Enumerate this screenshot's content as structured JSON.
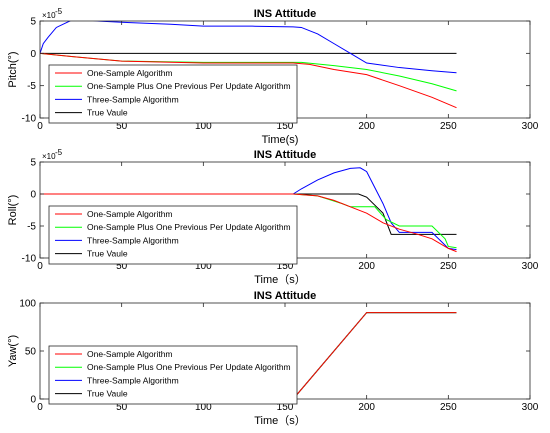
{
  "chart_data": [
    {
      "type": "line",
      "title": "INS Attitude",
      "xlabel": "Time(s)",
      "ylabel": "Pitch(°)",
      "xlim": [
        0,
        300
      ],
      "ylim": [
        -10,
        5
      ],
      "y_exponent_label": "×10",
      "y_exponent": "-5",
      "xticks": [
        0,
        50,
        100,
        150,
        200,
        250,
        300
      ],
      "yticks": [
        5,
        0,
        -5,
        -10
      ],
      "legend_position": "lower-left",
      "series": [
        {
          "name": "One-Sample Algorithm",
          "color": "#ff0000",
          "points": [
            [
              0,
              0
            ],
            [
              20,
              -0.5
            ],
            [
              50,
              -1.2
            ],
            [
              100,
              -1.5
            ],
            [
              155,
              -1.5
            ],
            [
              165,
              -1.7
            ],
            [
              180,
              -2.5
            ],
            [
              200,
              -3.3
            ],
            [
              220,
              -5.0
            ],
            [
              240,
              -6.8
            ],
            [
              255,
              -8.4
            ]
          ]
        },
        {
          "name": "One-Sample Plus One Previous Per Update Algorithm",
          "color": "#00ff00",
          "points": [
            [
              0,
              0
            ],
            [
              20,
              -0.5
            ],
            [
              50,
              -1.2
            ],
            [
              100,
              -1.4
            ],
            [
              160,
              -1.4
            ],
            [
              180,
              -1.9
            ],
            [
              200,
              -2.5
            ],
            [
              220,
              -3.5
            ],
            [
              240,
              -4.7
            ],
            [
              255,
              -5.8
            ]
          ]
        },
        {
          "name": "Three-Sample Algorithm",
          "color": "#0000ff",
          "points": [
            [
              0,
              0
            ],
            [
              2,
              1.5
            ],
            [
              5,
              2.5
            ],
            [
              10,
              4.0
            ],
            [
              15,
              4.6
            ],
            [
              20,
              5.2
            ],
            [
              25,
              5.3
            ],
            [
              35,
              5.0
            ],
            [
              50,
              4.8
            ],
            [
              80,
              4.5
            ],
            [
              100,
              4.2
            ],
            [
              130,
              4.2
            ],
            [
              155,
              4.1
            ],
            [
              160,
              4.0
            ],
            [
              170,
              3.0
            ],
            [
              180,
              1.5
            ],
            [
              190,
              0
            ],
            [
              200,
              -1.5
            ],
            [
              220,
              -2.2
            ],
            [
              240,
              -2.7
            ],
            [
              255,
              -3.0
            ]
          ]
        },
        {
          "name": "True Vaule",
          "color": "#000000",
          "points": [
            [
              0,
              0
            ],
            [
              255,
              0
            ]
          ]
        }
      ]
    },
    {
      "type": "line",
      "title": "INS Attitude",
      "xlabel": "Time（s）",
      "ylabel": "Roll(°)",
      "xlim": [
        0,
        300
      ],
      "ylim": [
        -10,
        5
      ],
      "y_exponent_label": "×10",
      "y_exponent": "-5",
      "xticks": [
        0,
        50,
        100,
        150,
        200,
        250,
        300
      ],
      "yticks": [
        5,
        0,
        -5,
        -10
      ],
      "legend_position": "lower-left",
      "series": [
        {
          "name": "One-Sample Algorithm",
          "color": "#ff0000",
          "points": [
            [
              0,
              0
            ],
            [
              155,
              0
            ],
            [
              170,
              -0.3
            ],
            [
              180,
              -1.0
            ],
            [
              190,
              -2.0
            ],
            [
              200,
              -3.0
            ],
            [
              210,
              -4.5
            ],
            [
              220,
              -5.5
            ],
            [
              230,
              -6.2
            ],
            [
              240,
              -7.0
            ],
            [
              250,
              -8.5
            ],
            [
              255,
              -9.0
            ]
          ]
        },
        {
          "name": "One-Sample Plus One Previous Per Update Algorithm",
          "color": "#00ff00",
          "points": [
            [
              0,
              0
            ],
            [
              155,
              0
            ],
            [
              170,
              -0.3
            ],
            [
              185,
              -1.5
            ],
            [
              190,
              -2.0
            ],
            [
              205,
              -2.0
            ],
            [
              212,
              -4.0
            ],
            [
              220,
              -5.0
            ],
            [
              240,
              -5.0
            ],
            [
              248,
              -7.0
            ],
            [
              250,
              -8.2
            ],
            [
              255,
              -8.4
            ]
          ]
        },
        {
          "name": "Three-Sample Algorithm",
          "color": "#0000ff",
          "points": [
            [
              0,
              0
            ],
            [
              155,
              0
            ],
            [
              160,
              0.8
            ],
            [
              170,
              2.2
            ],
            [
              180,
              3.3
            ],
            [
              190,
              4.0
            ],
            [
              196,
              4.1
            ],
            [
              200,
              3.5
            ],
            [
              205,
              1.0
            ],
            [
              210,
              -1.5
            ],
            [
              215,
              -4.5
            ],
            [
              220,
              -6.0
            ],
            [
              240,
              -6.0
            ],
            [
              250,
              -8.5
            ],
            [
              255,
              -8.7
            ]
          ]
        },
        {
          "name": "True Vaule",
          "color": "#000000",
          "points": [
            [
              0,
              0
            ],
            [
              195,
              0
            ],
            [
              200,
              -0.5
            ],
            [
              210,
              -3.0
            ],
            [
              215,
              -6.3
            ],
            [
              255,
              -6.3
            ]
          ]
        }
      ]
    },
    {
      "type": "line",
      "title": "INS Attitude",
      "xlabel": "Time（s）",
      "ylabel": "Yaw(°)",
      "xlim": [
        0,
        300
      ],
      "ylim": [
        0,
        100
      ],
      "xticks": [
        0,
        50,
        100,
        150,
        200,
        250,
        300
      ],
      "yticks": [
        100,
        50,
        0
      ],
      "legend_position": "lower-left",
      "series": [
        {
          "name": "One-Sample Algorithm",
          "color": "#ff0000",
          "points": [
            [
              155,
              0
            ],
            [
              200,
              90
            ],
            [
              255,
              90
            ]
          ]
        },
        {
          "name": "One-Sample Plus One Previous Per Update Algorithm",
          "color": "#00ff00",
          "points": [
            [
              155,
              0
            ],
            [
              200,
              90
            ],
            [
              255,
              90
            ]
          ]
        },
        {
          "name": "Three-Sample Algorithm",
          "color": "#0000ff",
          "points": [
            [
              155,
              0
            ],
            [
              200,
              90
            ],
            [
              255,
              90
            ]
          ]
        },
        {
          "name": "True Vaule",
          "color": "#000000",
          "points": [
            [
              155,
              0
            ],
            [
              200,
              90
            ],
            [
              255,
              90
            ]
          ]
        }
      ]
    }
  ]
}
